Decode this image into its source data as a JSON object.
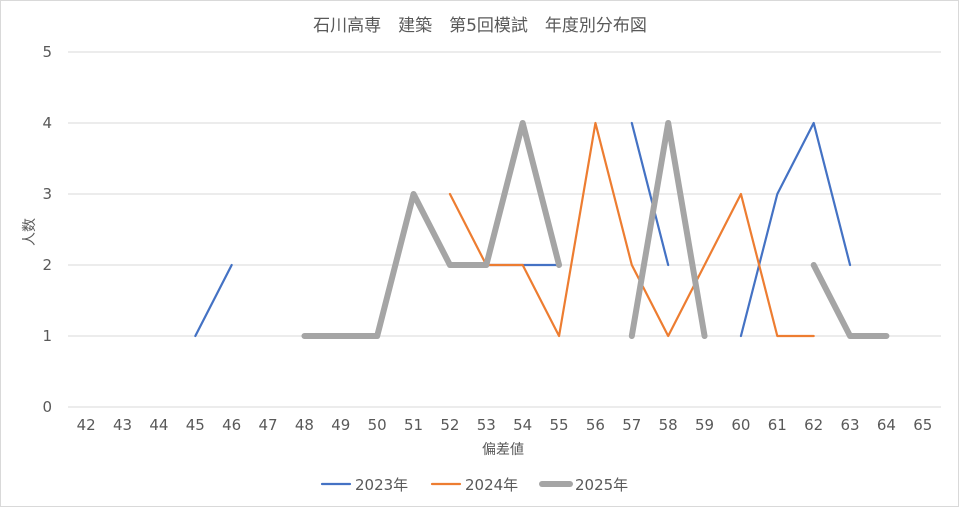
{
  "chart_data": {
    "type": "line",
    "title": "石川高専　建築　第5回模試　年度別分布図",
    "xlabel": "偏差値",
    "ylabel": "人数",
    "categories": [
      "42",
      "43",
      "44",
      "45",
      "46",
      "47",
      "48",
      "49",
      "50",
      "51",
      "52",
      "53",
      "54",
      "55",
      "56",
      "57",
      "58",
      "59",
      "60",
      "61",
      "62",
      "63",
      "64",
      "65"
    ],
    "ylim": [
      0,
      5
    ],
    "yticks": [
      "0",
      "1",
      "2",
      "3",
      "4",
      "5"
    ],
    "grid": true,
    "legend_position": "bottom",
    "series": [
      {
        "name": "2023年",
        "color": "#4472c4",
        "values": [
          null,
          null,
          null,
          1,
          2,
          null,
          null,
          null,
          null,
          null,
          null,
          2,
          2,
          2,
          null,
          4,
          2,
          null,
          1,
          3,
          4,
          2,
          null,
          null
        ]
      },
      {
        "name": "2024年",
        "color": "#ed7d31",
        "values": [
          null,
          null,
          null,
          null,
          null,
          null,
          null,
          null,
          null,
          null,
          3,
          2,
          2,
          1,
          4,
          2,
          1,
          2,
          3,
          1,
          1,
          null,
          null,
          null
        ]
      },
      {
        "name": "2025年",
        "color": "#a5a5a5",
        "values": [
          null,
          null,
          null,
          null,
          null,
          null,
          1,
          1,
          1,
          3,
          2,
          2,
          4,
          2,
          null,
          1,
          4,
          1,
          null,
          null,
          2,
          1,
          1,
          null
        ]
      }
    ]
  }
}
